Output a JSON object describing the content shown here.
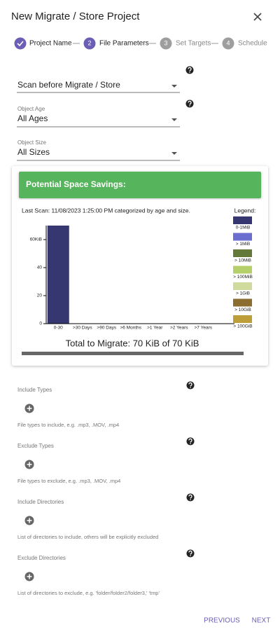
{
  "header": {
    "title": "New Migrate / Store Project"
  },
  "steps": [
    {
      "label": "Project Name"
    },
    {
      "number": "2",
      "label": "File Parameters"
    },
    {
      "number": "3",
      "label": "Set Targets"
    },
    {
      "number": "4",
      "label": "Schedule"
    }
  ],
  "form": {
    "scan_mode": "Scan before Migrate / Store",
    "object_age": {
      "label": "Object Age",
      "value": "All Ages"
    },
    "object_size": {
      "label": "Object Size",
      "value": "All Sizes"
    }
  },
  "savings": {
    "title": "Potential Space Savings:",
    "total": "Total to Migrate: 70 KiB of 70 KiB"
  },
  "chart_data": {
    "type": "bar",
    "stacked": true,
    "subtitle": "Last Scan: 11/08/2023 1:25:00 PM categorized by age and size.",
    "legend_title": "Legend:",
    "categories": [
      "0-30",
      ">30 Days",
      ">90 Days",
      ">6 Months",
      ">1 Year",
      ">2 Years",
      ">7 Years"
    ],
    "series": [
      {
        "name": "0-1MiB",
        "color": "#363770",
        "values": [
          70,
          0,
          0,
          0,
          0,
          0,
          0
        ]
      },
      {
        "name": "> 1MiB",
        "color": "#6b6ecf",
        "values": [
          0,
          0,
          0,
          0,
          0,
          0,
          0
        ]
      },
      {
        "name": "> 10MiB",
        "color": "#637939",
        "values": [
          0,
          0,
          0,
          0,
          0,
          0,
          0
        ]
      },
      {
        "name": "> 100MiB",
        "color": "#b5cf6b",
        "values": [
          0,
          0,
          0,
          0,
          0,
          0,
          0
        ]
      },
      {
        "name": "> 1GiB",
        "color": "#cedb9c",
        "values": [
          0,
          0,
          0,
          0,
          0,
          0,
          0
        ]
      },
      {
        "name": "> 10GiB",
        "color": "#8c6d31",
        "values": [
          0,
          0,
          0,
          0,
          0,
          0,
          0
        ]
      },
      {
        "name": "> 100GiB",
        "color": "#bd9e39",
        "values": [
          0,
          0,
          0,
          0,
          0,
          0,
          0
        ]
      }
    ],
    "ylim": [
      0,
      70
    ],
    "yticks": [
      0,
      20,
      40,
      {
        "value": 60,
        "label": "60KiB"
      }
    ]
  },
  "filters": [
    {
      "label": "Include Types",
      "hint": "File types to include, e.g. .mp3, .MOV, .mp4"
    },
    {
      "label": "Exclude Types",
      "hint": "File types to exclude, e.g. .mp3, .MOV, .mp4"
    },
    {
      "label": "Include Directories",
      "hint": "List of directories to include, others will be explicitly excluded"
    },
    {
      "label": "Exclude Directories",
      "hint": "List of directories to exclude, e.g. 'folder/folder2/folder3,' 'tmp'"
    }
  ],
  "footer": {
    "previous": "PREVIOUS",
    "next": "NEXT"
  }
}
